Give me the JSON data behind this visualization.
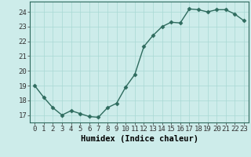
{
  "x": [
    0,
    1,
    2,
    3,
    4,
    5,
    6,
    7,
    8,
    9,
    10,
    11,
    12,
    13,
    14,
    15,
    16,
    17,
    18,
    19,
    20,
    21,
    22,
    23
  ],
  "y": [
    19.0,
    18.2,
    17.5,
    17.0,
    17.3,
    17.1,
    16.9,
    16.85,
    17.5,
    17.8,
    18.9,
    19.75,
    21.65,
    22.4,
    23.0,
    23.3,
    23.25,
    24.2,
    24.15,
    24.0,
    24.15,
    24.15,
    23.85,
    23.4
  ],
  "line_color": "#2e6b5e",
  "marker": "D",
  "markersize": 2.5,
  "linewidth": 1.0,
  "bg_color": "#cdecea",
  "grid_color": "#a8d8d4",
  "xlabel": "Humidex (Indice chaleur)",
  "ylim": [
    16.5,
    24.7
  ],
  "xlim": [
    -0.5,
    23.5
  ],
  "yticks": [
    17,
    18,
    19,
    20,
    21,
    22,
    23,
    24
  ],
  "xticks": [
    0,
    1,
    2,
    3,
    4,
    5,
    6,
    7,
    8,
    9,
    10,
    11,
    12,
    13,
    14,
    15,
    16,
    17,
    18,
    19,
    20,
    21,
    22,
    23
  ],
  "tick_fontsize": 6.5,
  "xlabel_fontsize": 7.5
}
